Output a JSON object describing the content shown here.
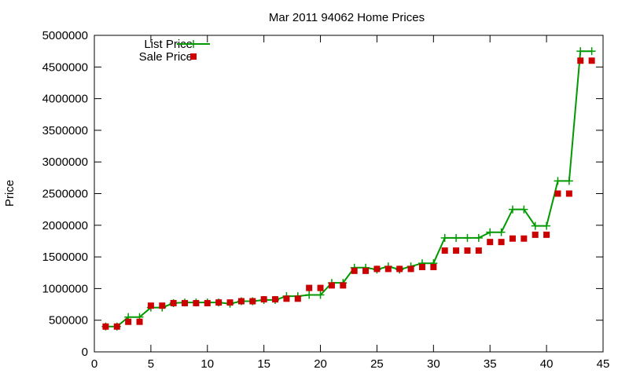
{
  "chart_data": {
    "type": "line",
    "title": "Mar 2011 94062 Home Prices",
    "xlabel": "",
    "ylabel": "Price",
    "xlim": [
      0,
      45
    ],
    "ylim": [
      0,
      5000000
    ],
    "xticks": [
      0,
      5,
      10,
      15,
      20,
      25,
      30,
      35,
      40,
      45
    ],
    "yticks": [
      0,
      500000,
      1000000,
      1500000,
      2000000,
      2500000,
      3000000,
      3500000,
      4000000,
      4500000,
      5000000
    ],
    "grid": false,
    "legend_position": "top-left",
    "series": [
      {
        "name": "List Price",
        "style": "linespoints",
        "marker": "plus",
        "color": "#009900",
        "x": [
          1,
          2,
          3,
          4,
          5,
          6,
          7,
          8,
          9,
          10,
          11,
          12,
          13,
          14,
          15,
          16,
          17,
          18,
          19,
          20,
          21,
          22,
          23,
          24,
          25,
          26,
          27,
          28,
          29,
          30,
          31,
          32,
          33,
          34,
          35,
          36,
          37,
          38,
          39,
          40,
          41,
          42,
          43,
          44
        ],
        "y": [
          400000,
          400000,
          550000,
          550000,
          700000,
          700000,
          770000,
          780000,
          780000,
          780000,
          780000,
          760000,
          800000,
          800000,
          820000,
          820000,
          880000,
          880000,
          900000,
          900000,
          1090000,
          1090000,
          1330000,
          1330000,
          1300000,
          1350000,
          1300000,
          1350000,
          1400000,
          1400000,
          1800000,
          1800000,
          1800000,
          1800000,
          1890000,
          1890000,
          2250000,
          2250000,
          1990000,
          1990000,
          2700000,
          2700000,
          4750000,
          4750000
        ]
      },
      {
        "name": "Sale Price",
        "style": "points",
        "marker": "square",
        "color": "#cc0000",
        "x": [
          1,
          2,
          3,
          4,
          5,
          6,
          7,
          8,
          9,
          10,
          11,
          12,
          13,
          14,
          15,
          16,
          17,
          18,
          19,
          20,
          21,
          22,
          23,
          24,
          25,
          26,
          27,
          28,
          29,
          30,
          31,
          32,
          33,
          34,
          35,
          36,
          37,
          38,
          39,
          40,
          41,
          42,
          43,
          44
        ],
        "y": [
          400000,
          400000,
          475000,
          475000,
          730000,
          730000,
          770000,
          770000,
          770000,
          770000,
          780000,
          780000,
          800000,
          800000,
          830000,
          830000,
          840000,
          840000,
          1010000,
          1010000,
          1050000,
          1050000,
          1280000,
          1280000,
          1310000,
          1310000,
          1310000,
          1310000,
          1340000,
          1340000,
          1600000,
          1600000,
          1600000,
          1600000,
          1735000,
          1735000,
          1790000,
          1790000,
          1850000,
          1850000,
          2500000,
          2500000,
          4600000,
          4600000
        ]
      }
    ]
  }
}
